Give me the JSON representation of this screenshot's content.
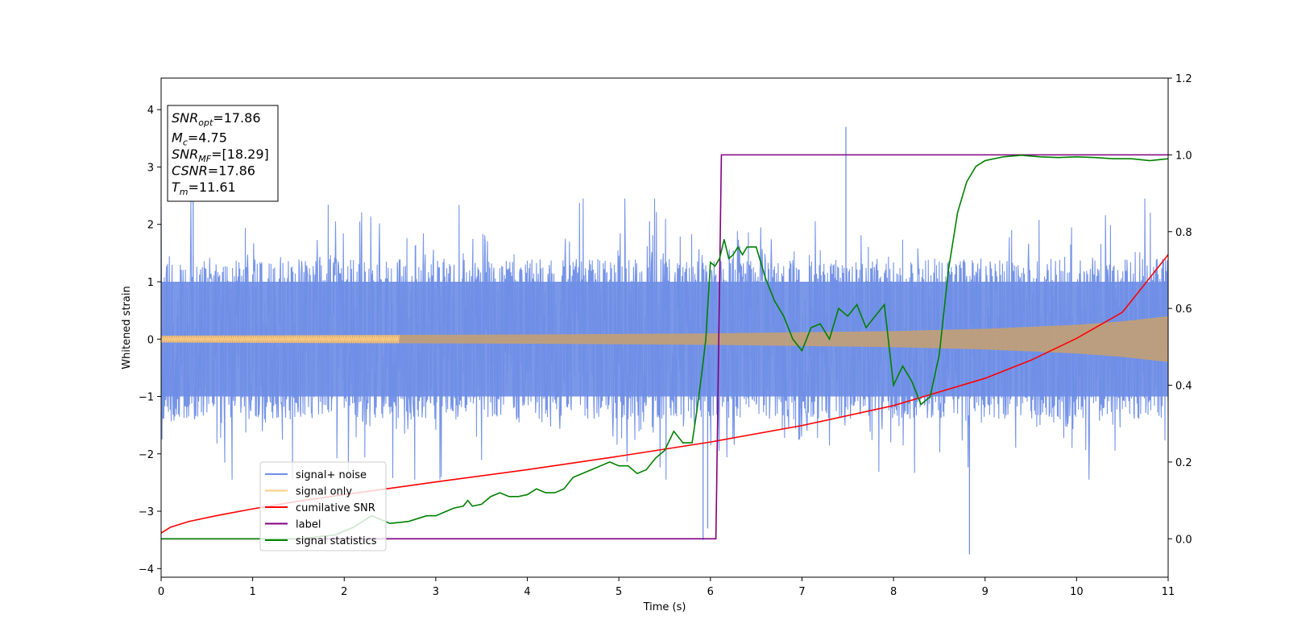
{
  "chart_data": {
    "type": "line",
    "xlabel": "Time (s)",
    "ylabel": "Whitened strain",
    "xlim": [
      0,
      11
    ],
    "ylim_left": [
      -4.15,
      4.55
    ],
    "ylim_right": [
      -0.1,
      1.2
    ],
    "xticks": [
      0,
      1,
      2,
      3,
      4,
      5,
      6,
      7,
      8,
      9,
      10,
      11
    ],
    "yticks_left": [
      -4,
      -3,
      -2,
      -1,
      0,
      1,
      2,
      3,
      4
    ],
    "yticks_right": [
      "0.0",
      "0.2",
      "0.4",
      "0.6",
      "0.8",
      "1.0",
      "1.2"
    ],
    "yticks_right_values": [
      0.0,
      0.2,
      0.4,
      0.6,
      0.8,
      1.0,
      1.2
    ],
    "colors": {
      "signal_noise": "#6f8ee6",
      "signal_only": "#ffcc80",
      "signal_overlap": "#bf9f7a",
      "cumulative_snr": "#ff0000",
      "label": "#800080",
      "signal_statistics": "#008000"
    },
    "noise_envelope": {
      "spike_t": [
        7.48,
        8.83,
        5.92,
        5.97,
        0.35
      ],
      "spike_v": [
        3.7,
        -3.75,
        -3.5,
        -3.3,
        2.5
      ],
      "typical_amplitude": 1.35
    },
    "signal_envelope": {
      "t": [
        0,
        2,
        4,
        6,
        8,
        9,
        10,
        10.5,
        11
      ],
      "amp": [
        0.06,
        0.07,
        0.08,
        0.1,
        0.14,
        0.18,
        0.25,
        0.31,
        0.4
      ]
    },
    "series": [
      {
        "name": "signal+ noise",
        "axis": "left",
        "x": [
          0,
          11
        ],
        "y": [
          0,
          0
        ]
      },
      {
        "name": "signal only",
        "axis": "left",
        "x": [
          0,
          11
        ],
        "y": [
          0,
          0
        ]
      },
      {
        "name": "cumilative SNR",
        "axis": "right",
        "x": [
          0,
          0.1,
          0.3,
          0.6,
          1,
          1.5,
          2,
          3,
          4,
          5,
          6,
          7,
          8,
          9,
          9.5,
          10,
          10.5,
          11
        ],
        "y": [
          0.015,
          0.03,
          0.045,
          0.06,
          0.078,
          0.098,
          0.115,
          0.148,
          0.18,
          0.215,
          0.252,
          0.295,
          0.347,
          0.418,
          0.465,
          0.522,
          0.59,
          0.74
        ]
      },
      {
        "name": "label",
        "axis": "right",
        "x": [
          0,
          6.06,
          6.12,
          11
        ],
        "y": [
          0,
          0,
          1,
          1
        ]
      },
      {
        "name": "signal statistics",
        "axis": "right",
        "x": [
          0,
          1.5,
          1.9,
          2.1,
          2.3,
          2.5,
          2.7,
          2.9,
          3.0,
          3.1,
          3.2,
          3.3,
          3.35,
          3.4,
          3.5,
          3.6,
          3.7,
          3.8,
          3.9,
          4.0,
          4.1,
          4.2,
          4.3,
          4.4,
          4.5,
          4.6,
          4.7,
          4.8,
          4.9,
          5.0,
          5.1,
          5.2,
          5.3,
          5.4,
          5.5,
          5.6,
          5.7,
          5.8,
          5.85,
          5.9,
          5.95,
          6.0,
          6.05,
          6.1,
          6.15,
          6.2,
          6.25,
          6.3,
          6.35,
          6.4,
          6.5,
          6.6,
          6.7,
          6.8,
          6.9,
          7.0,
          7.1,
          7.2,
          7.3,
          7.4,
          7.5,
          7.6,
          7.7,
          7.8,
          7.9,
          8.0,
          8.1,
          8.2,
          8.3,
          8.4,
          8.5,
          8.6,
          8.7,
          8.8,
          8.9,
          9.0,
          9.2,
          9.4,
          9.6,
          9.8,
          10.0,
          10.2,
          10.4,
          10.6,
          10.8,
          11.0
        ],
        "y": [
          0,
          0,
          0.01,
          0.03,
          0.06,
          0.04,
          0.045,
          0.06,
          0.06,
          0.07,
          0.08,
          0.085,
          0.1,
          0.085,
          0.09,
          0.11,
          0.12,
          0.11,
          0.11,
          0.115,
          0.13,
          0.12,
          0.12,
          0.13,
          0.16,
          0.17,
          0.18,
          0.19,
          0.2,
          0.19,
          0.19,
          0.17,
          0.18,
          0.21,
          0.23,
          0.28,
          0.25,
          0.25,
          0.33,
          0.42,
          0.52,
          0.72,
          0.71,
          0.73,
          0.78,
          0.73,
          0.74,
          0.76,
          0.74,
          0.76,
          0.76,
          0.68,
          0.62,
          0.58,
          0.52,
          0.49,
          0.55,
          0.56,
          0.52,
          0.6,
          0.58,
          0.61,
          0.55,
          0.58,
          0.61,
          0.4,
          0.45,
          0.41,
          0.35,
          0.37,
          0.48,
          0.7,
          0.85,
          0.93,
          0.97,
          0.985,
          0.995,
          0.999,
          0.995,
          0.993,
          0.995,
          0.993,
          0.99,
          0.99,
          0.985,
          0.99
        ]
      }
    ],
    "legend": {
      "placement": "lower-left",
      "entries": [
        "signal+ noise",
        "signal only",
        "cumilative SNR",
        "label",
        "signal statistics"
      ]
    },
    "annotation_box": {
      "placement": "upper-left",
      "lines": [
        {
          "var": "SNR",
          "sub": "opt",
          "value": "=17.86"
        },
        {
          "var": "M",
          "sub": "c",
          "value": "=4.75"
        },
        {
          "var": "SNR",
          "sub": "MF",
          "value": "=[18.29]"
        },
        {
          "var": "CSNR",
          "sub": "",
          "value": "=17.86"
        },
        {
          "var": "T",
          "sub": "m",
          "value": "=11.61"
        }
      ]
    }
  }
}
